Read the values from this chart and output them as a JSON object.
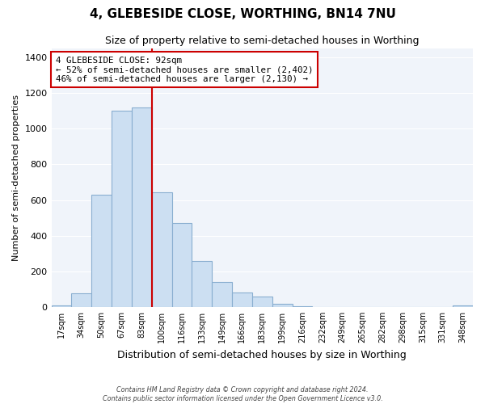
{
  "title": "4, GLEBESIDE CLOSE, WORTHING, BN14 7NU",
  "subtitle": "Size of property relative to semi-detached houses in Worthing",
  "xlabel": "Distribution of semi-detached houses by size in Worthing",
  "ylabel": "Number of semi-detached properties",
  "categories": [
    "17sqm",
    "34sqm",
    "50sqm",
    "67sqm",
    "83sqm",
    "100sqm",
    "116sqm",
    "133sqm",
    "149sqm",
    "166sqm",
    "183sqm",
    "199sqm",
    "216sqm",
    "232sqm",
    "249sqm",
    "265sqm",
    "282sqm",
    "298sqm",
    "315sqm",
    "331sqm",
    "348sqm"
  ],
  "values": [
    10,
    75,
    630,
    1100,
    1120,
    645,
    470,
    260,
    140,
    80,
    60,
    20,
    5,
    2,
    0,
    0,
    0,
    0,
    0,
    0,
    8
  ],
  "bar_color": "#ccdff2",
  "bar_edge_color": "#89aed0",
  "vline_x_index": 4.5,
  "vline_color": "#cc0000",
  "annotation_line1": "4 GLEBESIDE CLOSE: 92sqm",
  "annotation_line2": "← 52% of semi-detached houses are smaller (2,402)",
  "annotation_line3": "46% of semi-detached houses are larger (2,130) →",
  "annotation_box_color": "#ffffff",
  "annotation_box_edge": "#cc0000",
  "ylim": [
    0,
    1450
  ],
  "yticks": [
    0,
    200,
    400,
    600,
    800,
    1000,
    1200,
    1400
  ],
  "footer_line1": "Contains HM Land Registry data © Crown copyright and database right 2024.",
  "footer_line2": "Contains public sector information licensed under the Open Government Licence v3.0.",
  "background_color": "#ffffff",
  "plot_bg_color": "#f0f4fa",
  "grid_color": "#ffffff",
  "title_fontsize": 11,
  "subtitle_fontsize": 9
}
